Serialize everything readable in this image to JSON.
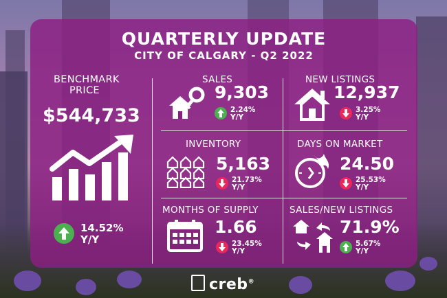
{
  "header": {
    "title": "QUARTERLY UPDATE",
    "subtitle": "CITY OF CALGARY - Q2 2022"
  },
  "benchmark": {
    "label_line1": "BENCHMARK",
    "label_line2": "PRICE",
    "value": "$544,733",
    "change": "14.52%",
    "period": "Y/Y",
    "direction": "up"
  },
  "metrics": {
    "sales": {
      "label": "SALES",
      "value": "9,303",
      "change": "2.24%",
      "period": "Y/Y",
      "direction": "up"
    },
    "new_listings": {
      "label": "NEW LISTINGS",
      "value": "12,937",
      "change": "3.25%",
      "period": "Y/Y",
      "direction": "down"
    },
    "inventory": {
      "label": "INVENTORY",
      "value": "5,163",
      "change": "21.73%",
      "period": "Y/Y",
      "direction": "down"
    },
    "days_on_market": {
      "label": "DAYS ON MARKET",
      "value": "24.50",
      "change": "25.53%",
      "period": "Y/Y",
      "direction": "down"
    },
    "months_of_supply": {
      "label": "MONTHS OF SUPPLY",
      "value": "1.66",
      "change": "23.45%",
      "period": "Y/Y",
      "direction": "down"
    },
    "sales_new_listings": {
      "label": "SALES/NEW LISTINGS",
      "value": "71.9%",
      "change": "5.67%",
      "period": "Y/Y",
      "direction": "up"
    }
  },
  "footer": {
    "brand": "creb",
    "trademark": "®"
  },
  "colors": {
    "panel": "#8c1e82",
    "up": "#4caf50",
    "down": "#e8285a"
  },
  "icons": {
    "benchmark": "rising-bar-chart-icon",
    "sales": "house-keys-icon",
    "new_listings": "house-icon",
    "inventory": "houses-grid-icon",
    "days_on_market": "fast-clock-icon",
    "months_of_supply": "calendar-icon",
    "sales_new_listings": "house-exchange-icon"
  }
}
